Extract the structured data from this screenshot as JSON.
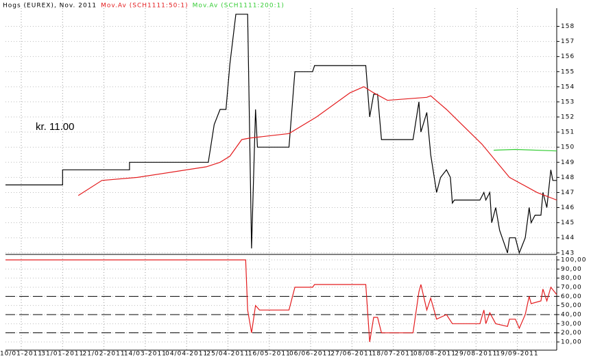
{
  "chart_data": [
    {
      "type": "line",
      "annotation": "kr. 11.00",
      "xlim": [
        "2011-01-02",
        "2011-10-09"
      ],
      "ylim": [
        142.9,
        159.2
      ],
      "yticks": [
        143,
        144,
        145,
        146,
        147,
        148,
        149,
        150,
        151,
        152,
        153,
        154,
        155,
        156,
        157,
        158
      ],
      "grid": true,
      "series": [
        {
          "name": "Hogs (EUREX), Nov. 2011",
          "color": "#000000",
          "x": [
            "2011-01-02",
            "2011-01-31",
            "2011-01-31",
            "2011-03-06",
            "2011-03-06",
            "2011-04-15",
            "2011-04-18",
            "2011-04-21",
            "2011-04-24",
            "2011-04-26",
            "2011-04-29",
            "2011-05-05",
            "2011-05-07",
            "2011-05-09",
            "2011-05-10",
            "2011-05-26",
            "2011-05-29",
            "2011-06-07",
            "2011-06-08",
            "2011-07-04",
            "2011-07-06",
            "2011-07-08",
            "2011-07-10",
            "2011-07-12",
            "2011-07-28",
            "2011-07-31",
            "2011-08-01",
            "2011-08-04",
            "2011-08-06",
            "2011-08-09",
            "2011-08-11",
            "2011-08-14",
            "2011-08-16",
            "2011-08-17",
            "2011-08-18",
            "2011-08-31",
            "2011-09-02",
            "2011-09-03",
            "2011-09-05",
            "2011-09-06",
            "2011-09-08",
            "2011-09-10",
            "2011-09-14",
            "2011-09-15",
            "2011-09-18",
            "2011-09-20",
            "2011-09-23",
            "2011-09-25",
            "2011-09-26",
            "2011-09-28",
            "2011-10-01",
            "2011-10-02",
            "2011-10-04",
            "2011-10-06",
            "2011-10-07",
            "2011-10-09"
          ],
          "values": [
            147.5,
            147.5,
            148.5,
            148.5,
            149.0,
            149.0,
            151.5,
            152.5,
            152.5,
            155.5,
            158.8,
            158.8,
            143.3,
            152.5,
            150,
            150,
            155,
            155,
            155.4,
            155.4,
            152,
            153.5,
            153.5,
            150.5,
            150.5,
            153,
            151,
            152.3,
            149.5,
            147,
            148,
            148.5,
            148,
            146.3,
            146.5,
            146.5,
            147,
            146.5,
            147,
            145,
            146,
            144.5,
            143,
            144,
            144,
            143,
            144,
            146,
            145,
            145.5,
            145.5,
            147,
            146,
            148.5,
            147.8,
            147.8
          ]
        },
        {
          "name": "Mov.Av (SCH1111:50:1)",
          "color": "#e31a1c",
          "x": [
            "2011-02-08",
            "2011-02-20",
            "2011-03-10",
            "2011-04-14",
            "2011-04-21",
            "2011-04-26",
            "2011-05-02",
            "2011-05-06",
            "2011-05-26",
            "2011-06-09",
            "2011-06-26",
            "2011-07-03",
            "2011-07-08",
            "2011-07-15",
            "2011-08-04",
            "2011-08-06",
            "2011-08-14",
            "2011-09-01",
            "2011-09-15",
            "2011-09-29",
            "2011-10-09"
          ],
          "values": [
            146.8,
            147.8,
            148.0,
            148.7,
            149.0,
            149.4,
            150.5,
            150.6,
            150.9,
            152.0,
            153.6,
            154.0,
            153.6,
            153.1,
            153.3,
            153.4,
            152.5,
            150.2,
            148.0,
            147.0,
            146.5
          ]
        },
        {
          "name": "Mov.Av (SCH1111:200:1)",
          "color": "#33cc33",
          "x": [
            "2011-09-07",
            "2011-09-18",
            "2011-10-09"
          ],
          "values": [
            149.8,
            149.85,
            149.75
          ]
        }
      ]
    },
    {
      "type": "line",
      "xlim": [
        "2011-01-02",
        "2011-10-09"
      ],
      "ylim": [
        1,
        104.5
      ],
      "yticks": [
        {
          "value": 10,
          "label": "10,00"
        },
        {
          "value": 20,
          "label": "20,00"
        },
        {
          "value": 30,
          "label": "30,00"
        },
        {
          "value": 40,
          "label": "40,00"
        },
        {
          "value": 50,
          "label": "50,00"
        },
        {
          "value": 60,
          "label": "60,00"
        },
        {
          "value": 70,
          "label": "70,00"
        },
        {
          "value": 80,
          "label": "80,00"
        },
        {
          "value": 90,
          "label": "90,00"
        },
        {
          "value": 100,
          "label": "100,00"
        }
      ],
      "hlines": [
        20,
        40,
        60
      ],
      "grid": true,
      "xticks": [
        {
          "value": "2011-01-10",
          "label": "10/01-2011"
        },
        {
          "value": "2011-01-31",
          "label": "31/01-2011"
        },
        {
          "value": "2011-02-21",
          "label": "21/02-2011"
        },
        {
          "value": "2011-03-14",
          "label": "14/03-2011"
        },
        {
          "value": "2011-04-04",
          "label": "04/04-2011"
        },
        {
          "value": "2011-04-25",
          "label": "25/04-2011"
        },
        {
          "value": "2011-05-16",
          "label": "16/05-2011"
        },
        {
          "value": "2011-06-06",
          "label": "06/06-2011"
        },
        {
          "value": "2011-06-27",
          "label": "27/06-2011"
        },
        {
          "value": "2011-07-18",
          "label": "18/07-2011"
        },
        {
          "value": "2011-08-08",
          "label": "08/08-2011"
        },
        {
          "value": "2011-08-29",
          "label": "29/08-2011"
        },
        {
          "value": "2011-09-19",
          "label": "19/09-2011"
        }
      ],
      "series": [
        {
          "color": "#e31a1c",
          "x": [
            "2011-01-02",
            "2011-05-04",
            "2011-05-05",
            "2011-05-07",
            "2011-05-09",
            "2011-05-11",
            "2011-05-26",
            "2011-05-29",
            "2011-06-07",
            "2011-06-08",
            "2011-07-04",
            "2011-07-06",
            "2011-07-08",
            "2011-07-10",
            "2011-07-12",
            "2011-07-28",
            "2011-07-31",
            "2011-08-01",
            "2011-08-04",
            "2011-08-06",
            "2011-08-09",
            "2011-08-14",
            "2011-08-17",
            "2011-08-31",
            "2011-09-02",
            "2011-09-03",
            "2011-09-05",
            "2011-09-08",
            "2011-09-14",
            "2011-09-15",
            "2011-09-18",
            "2011-09-20",
            "2011-09-23",
            "2011-09-25",
            "2011-09-26",
            "2011-10-01",
            "2011-10-02",
            "2011-10-04",
            "2011-10-06",
            "2011-10-09"
          ],
          "values": [
            100,
            100,
            45,
            20,
            50,
            45,
            45,
            70,
            70,
            73,
            73,
            10,
            37,
            37,
            20,
            20,
            65,
            73,
            45,
            58,
            35,
            40,
            30,
            30,
            45,
            30,
            42,
            30,
            27,
            35,
            35,
            25,
            40,
            60,
            52,
            55,
            68,
            55,
            70,
            62
          ]
        }
      ]
    }
  ]
}
